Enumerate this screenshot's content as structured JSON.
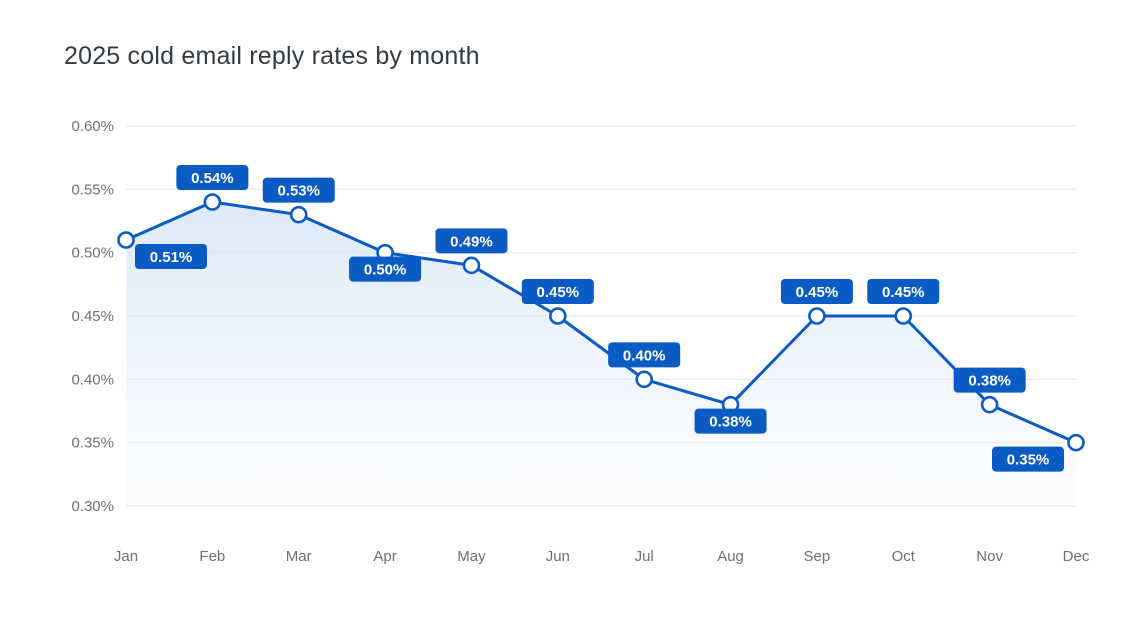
{
  "chart_data": {
    "type": "line",
    "title": "2025 cold email reply rates by month",
    "categories": [
      "Jan",
      "Feb",
      "Mar",
      "Apr",
      "May",
      "Jun",
      "Jul",
      "Aug",
      "Sep",
      "Oct",
      "Nov",
      "Dec"
    ],
    "series": [
      {
        "values": [
          0.51,
          0.54,
          0.53,
          0.5,
          0.49,
          0.45,
          0.4,
          0.38,
          0.45,
          0.45,
          0.38,
          0.35
        ]
      }
    ],
    "data_labels": [
      "0.51%",
      "0.54%",
      "0.53%",
      "0.50%",
      "0.49%",
      "0.45%",
      "0.40%",
      "0.38%",
      "0.45%",
      "0.45%",
      "0.38%",
      "0.35%"
    ],
    "label_positions": [
      "below",
      "above",
      "above",
      "below",
      "above",
      "above",
      "above",
      "below",
      "above",
      "above",
      "above",
      "below"
    ],
    "y_ticks": [
      "0.60%",
      "0.55%",
      "0.50%",
      "0.45%",
      "0.40%",
      "0.35%",
      "0.30%"
    ],
    "ylim": [
      0.3,
      0.6
    ],
    "grid": true,
    "legend": "none",
    "colors": {
      "line": "#0b5bc4",
      "label_bg": "#0b5bc4",
      "grid": "#e6e8ea",
      "area": "#dbe8f8"
    }
  }
}
